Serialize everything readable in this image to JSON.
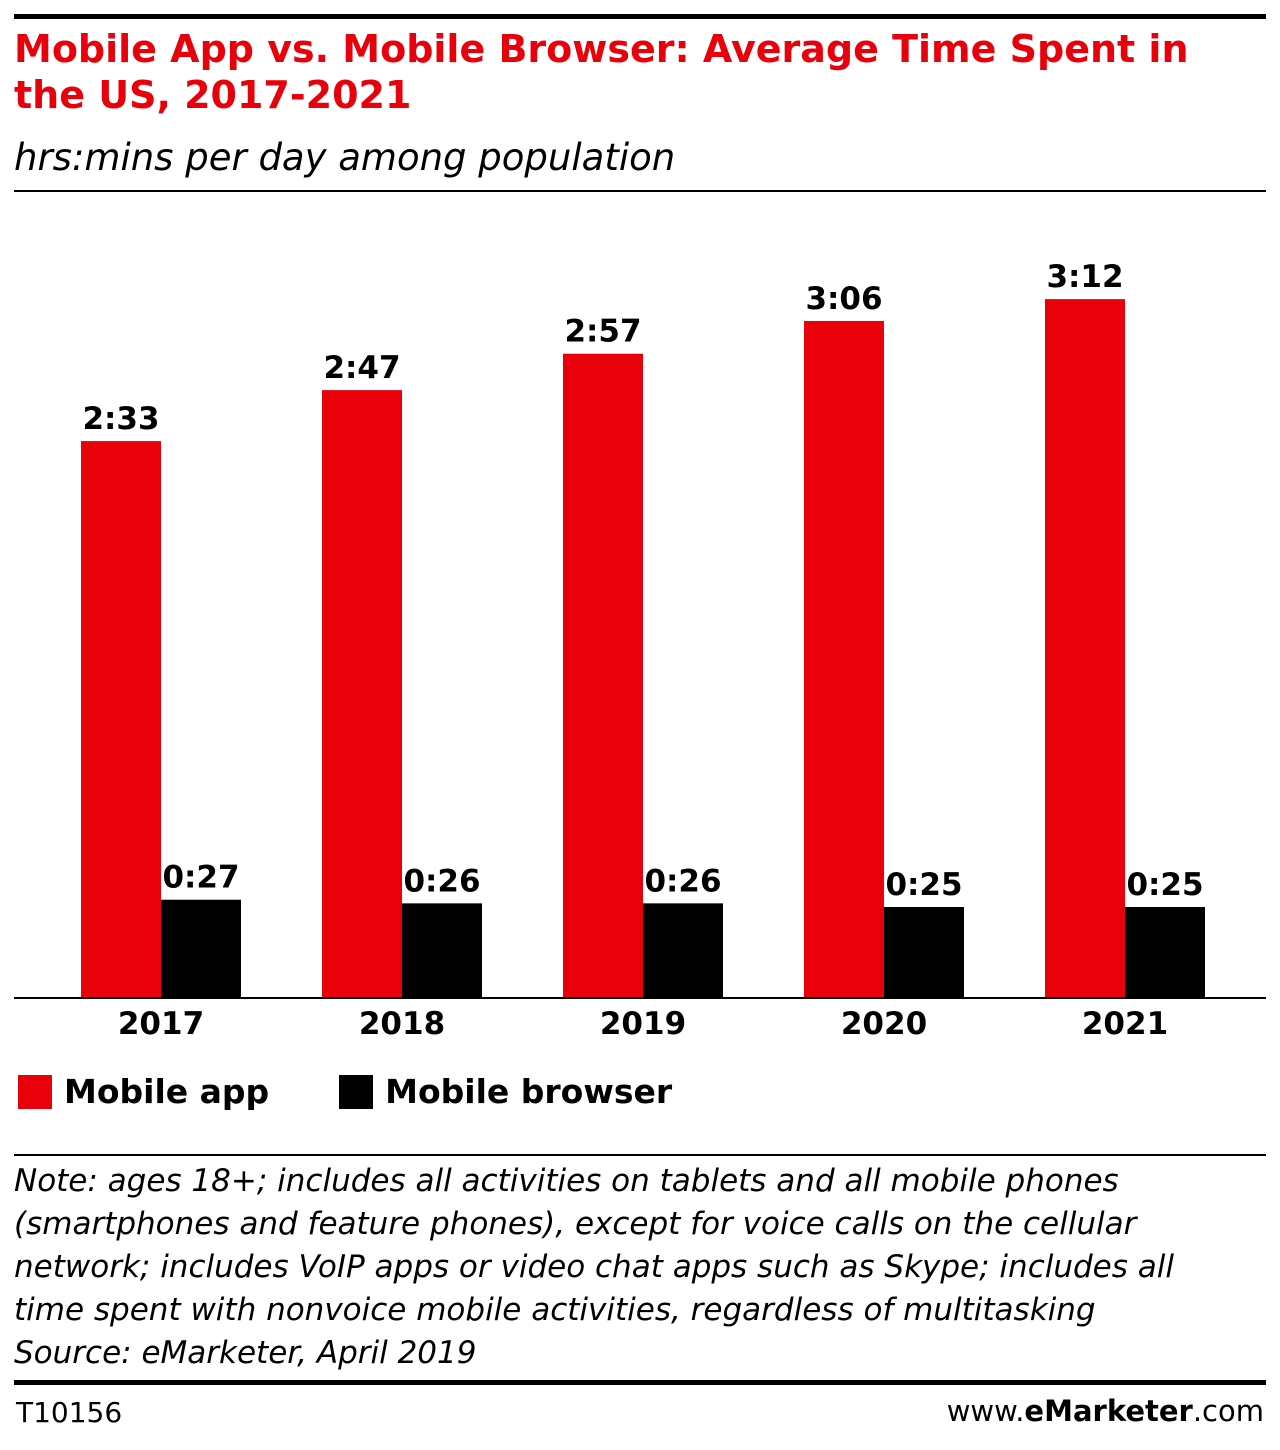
{
  "header": {
    "title": "Mobile App vs. Mobile Browser: Average Time Spent in the US, 2017-2021",
    "subtitle": "hrs:mins per day among population"
  },
  "chart_data": {
    "type": "bar",
    "categories": [
      "2017",
      "2018",
      "2019",
      "2020",
      "2021"
    ],
    "series": [
      {
        "name": "Mobile app",
        "color": "#e8000b",
        "values": [
          153,
          167,
          177,
          186,
          192
        ],
        "labels": [
          "2:33",
          "2:47",
          "2:57",
          "3:06",
          "3:12"
        ]
      },
      {
        "name": "Mobile browser",
        "color": "#000000",
        "values": [
          27,
          26,
          26,
          25,
          25
        ],
        "labels": [
          "0:27",
          "0:26",
          "0:26",
          "0:25",
          "0:25"
        ]
      }
    ],
    "unit": "minutes per day",
    "ylim": [
      0,
      200
    ],
    "grid": false,
    "legend_position": "bottom-left"
  },
  "legend": {
    "items": [
      {
        "label": "Mobile app",
        "color": "#e8000b"
      },
      {
        "label": "Mobile browser",
        "color": "#000000"
      }
    ]
  },
  "note": {
    "lines": [
      "Note: ages 18+; includes all activities on tablets and all mobile phones",
      "(smartphones and feature phones), except for voice calls on the cellular",
      "network; includes VoIP apps or video chat apps such as Skype; includes all",
      "time spent with nonvoice mobile activities, regardless of multitasking",
      "Source: eMarketer, April 2019"
    ]
  },
  "footer": {
    "chart_id": "T10156",
    "brand_prefix": "www.",
    "brand_name": "eMarketer",
    "brand_suffix": ".com"
  }
}
